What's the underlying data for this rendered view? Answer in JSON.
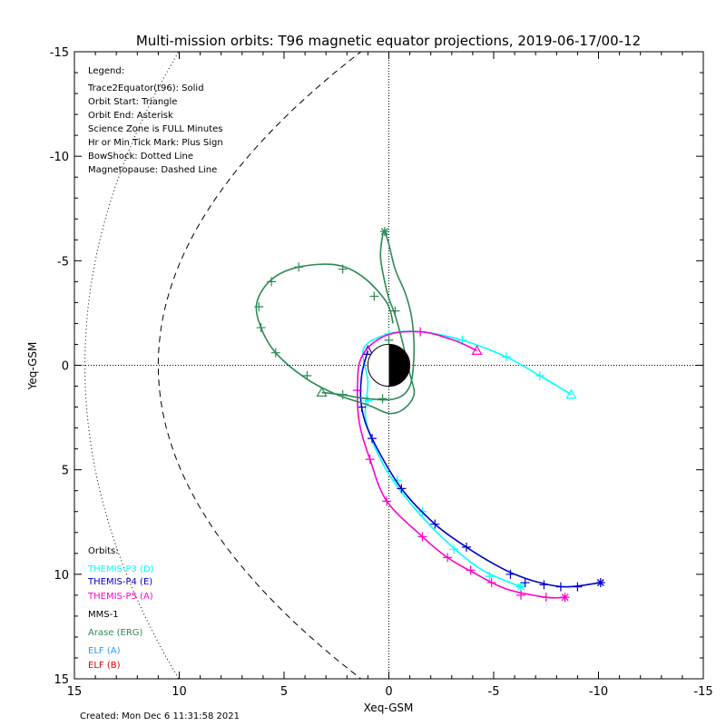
{
  "chart_data": {
    "type": "line",
    "title": "Multi-mission orbits: T96 magnetic equator projections, 2019-06-17/00-12",
    "xlabel": "Xeq-GSM",
    "ylabel": "Yeq-GSM",
    "xlim": [
      15,
      -15
    ],
    "ylim": [
      -15,
      15
    ],
    "grid": false,
    "x_ticks": [
      "15",
      "10",
      "5",
      "0",
      "-5",
      "-10",
      "-15"
    ],
    "y_ticks": [
      "-15",
      "-10",
      "-5",
      "0",
      "5",
      "10",
      "15"
    ],
    "legend_header": "Legend:",
    "legend_lines": [
      "Trace2Equator(t96): Solid",
      "Orbit Start: Triangle",
      "Orbit End: Asterisk",
      "Science Zone is FULL Minutes",
      "Hr or Min Tick Mark: Plus Sign",
      "BowShock: Dotted Line",
      "Magnetopause: Dashed Line"
    ],
    "orbits_header": "Orbits:",
    "orbits_legend": [
      {
        "label": "THEMIS-P3 (D)",
        "color": "#00ffff"
      },
      {
        "label": "THEMIS-P4 (E)",
        "color": "#0000cc"
      },
      {
        "label": "THEMIS-P5 (A)",
        "color": "#ff00cc"
      },
      {
        "label": "MMS-1",
        "color": "#000000"
      },
      {
        "label": "Arase (ERG)",
        "color": "#2e8b57"
      },
      {
        "label": "ELF (A)",
        "color": "#3399ff"
      },
      {
        "label": "ELF (B)",
        "color": "#dd0000"
      }
    ],
    "created": "Created: Mon Dec  6 11:31:58 2021",
    "boundaries": {
      "bow_shock": {
        "standoff_re": 14.5,
        "halfwidth_re": 27
      },
      "magnetopause": {
        "standoff_re": 11,
        "halfwidth_re": 16
      }
    },
    "series": [
      {
        "name": "THEMIS-P3 (D)",
        "color": "#00ffff",
        "points": [
          [
            -8.7,
            1.4
          ],
          [
            -7.2,
            0.5
          ],
          [
            -5.6,
            -0.4
          ],
          [
            -3.5,
            -1.2
          ],
          [
            -1.5,
            -1.6
          ],
          [
            0,
            -1.5
          ],
          [
            1.2,
            -0.8
          ],
          [
            1.0,
            0.8
          ],
          [
            1.1,
            2.6
          ],
          [
            0.4,
            4.5
          ],
          [
            -0.7,
            6.2
          ],
          [
            -2.3,
            8.0
          ],
          [
            -4.3,
            9.7
          ],
          [
            -6.3,
            10.6
          ]
        ],
        "ticks": [
          [
            -7.2,
            0.5
          ],
          [
            -5.6,
            -0.4
          ],
          [
            -3.5,
            -1.2
          ],
          [
            0,
            -1.5
          ],
          [
            1.0,
            1.7
          ],
          [
            -0.4,
            5.5
          ],
          [
            -1.6,
            7.0
          ],
          [
            -3.1,
            8.8
          ],
          [
            -4.8,
            10.1
          ]
        ],
        "start": [
          -8.7,
          1.4
        ],
        "end": [
          -6.3,
          10.6
        ]
      },
      {
        "name": "THEMIS-P4 (E)",
        "color": "#0000cc",
        "points": [
          [
            1.0,
            -0.7
          ],
          [
            1.3,
            0.5
          ],
          [
            1.3,
            2.0
          ],
          [
            0.8,
            3.5
          ],
          [
            -0.6,
            5.9
          ],
          [
            -2.2,
            7.6
          ],
          [
            -3.7,
            8.7
          ],
          [
            -5.0,
            9.5
          ],
          [
            -6.0,
            10.0
          ],
          [
            -7.2,
            10.4
          ],
          [
            -8.5,
            10.6
          ],
          [
            -10.1,
            10.4
          ]
        ],
        "ticks": [
          [
            1.3,
            2.0
          ],
          [
            0.8,
            3.5
          ],
          [
            -0.6,
            5.9
          ],
          [
            -2.2,
            7.6
          ],
          [
            -3.7,
            8.7
          ],
          [
            -5.8,
            10.0
          ],
          [
            -6.5,
            10.4
          ],
          [
            -7.4,
            10.5
          ],
          [
            -8.2,
            10.6
          ],
          [
            -9.0,
            10.6
          ]
        ],
        "start": [
          1.0,
          -0.7
        ],
        "end": [
          -10.1,
          10.4
        ]
      },
      {
        "name": "THEMIS-P5 (A)",
        "color": "#ff00cc",
        "points": [
          [
            -4.2,
            -0.7
          ],
          [
            -3.1,
            -1.2
          ],
          [
            -1.5,
            -1.6
          ],
          [
            0.2,
            -1.4
          ],
          [
            1.3,
            -0.4
          ],
          [
            1.5,
            1.2
          ],
          [
            1.4,
            2.8
          ],
          [
            0.9,
            4.5
          ],
          [
            0.1,
            6.5
          ],
          [
            -1.6,
            8.2
          ],
          [
            -2.8,
            9.2
          ],
          [
            -4.0,
            9.9
          ],
          [
            -5.6,
            10.7
          ],
          [
            -7.5,
            11.1
          ],
          [
            -8.4,
            11.1
          ]
        ],
        "ticks": [
          [
            -1.5,
            -1.6
          ],
          [
            1.5,
            1.2
          ],
          [
            0.9,
            4.5
          ],
          [
            0.1,
            6.5
          ],
          [
            -1.6,
            8.2
          ],
          [
            -2.8,
            9.2
          ],
          [
            -3.9,
            9.8
          ],
          [
            -4.9,
            10.4
          ],
          [
            -6.3,
            11.0
          ],
          [
            -7.5,
            11.1
          ]
        ],
        "start": [
          -4.2,
          -0.7
        ],
        "end": [
          -8.4,
          11.1
        ]
      },
      {
        "name": "Arase (ERG)",
        "color": "#2e8b57",
        "points": [
          [
            3.2,
            1.3
          ],
          [
            2.3,
            1.4
          ],
          [
            1.0,
            1.6
          ],
          [
            -0.3,
            1.6
          ],
          [
            -1.0,
            1.0
          ],
          [
            -1.2,
            -0.5
          ],
          [
            -1.1,
            -2.2
          ],
          [
            -0.8,
            -3.4
          ],
          [
            -0.3,
            -4.6
          ],
          [
            0,
            -5.8
          ],
          [
            0.2,
            -6.4
          ],
          [
            0.3,
            -6.2
          ],
          [
            0.4,
            -5.2
          ],
          [
            0.2,
            -4.0
          ],
          [
            0,
            -3.2
          ],
          [
            -0.3,
            -2.4
          ],
          [
            -0.6,
            -1.3
          ],
          [
            -1.0,
            0.4
          ],
          [
            -1.2,
            1.4
          ],
          [
            -0.7,
            2.1
          ],
          [
            0,
            2.3
          ],
          [
            1.0,
            1.9
          ],
          [
            2.5,
            1.4
          ],
          [
            4.0,
            0.6
          ],
          [
            5.4,
            -0.6
          ],
          [
            6.1,
            -1.8
          ],
          [
            6.3,
            -3.0
          ],
          [
            5.6,
            -4.1
          ],
          [
            4.3,
            -4.7
          ],
          [
            2.5,
            -4.8
          ],
          [
            1.2,
            -4.2
          ],
          [
            0.1,
            -3.0
          ],
          [
            -0.2,
            -2.0
          ]
        ],
        "ticks": [
          [
            2.2,
            1.4
          ],
          [
            0.3,
            1.6
          ],
          [
            -0.3,
            -2.6
          ],
          [
            3.9,
            0.5
          ],
          [
            5.4,
            -0.6
          ],
          [
            6.1,
            -1.8
          ],
          [
            6.2,
            -2.8
          ],
          [
            5.6,
            -4.0
          ],
          [
            4.3,
            -4.7
          ],
          [
            2.2,
            -4.6
          ],
          [
            0.7,
            -3.3
          ],
          [
            0.0,
            -1.2
          ]
        ],
        "start": [
          3.2,
          1.3
        ],
        "end": [
          0.2,
          -6.4
        ]
      }
    ]
  }
}
